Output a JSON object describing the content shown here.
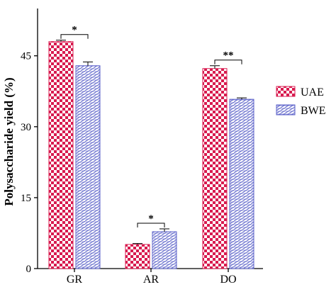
{
  "chart_data": {
    "type": "bar",
    "title": "",
    "xlabel": "",
    "ylabel": "Polysaccharide yield (%)",
    "ylim": [
      0,
      55
    ],
    "yticks": [
      "0",
      "15",
      "30",
      "45"
    ],
    "categories": [
      "GR",
      "AR",
      "DO"
    ],
    "series": [
      {
        "name": "UAE",
        "values": [
          48.0,
          5.1,
          42.3
        ],
        "errors": [
          0.3,
          0.2,
          0.6
        ],
        "color": "#d81b4f",
        "pattern": "checkerboard"
      },
      {
        "name": "BWE",
        "values": [
          42.9,
          7.8,
          35.8
        ],
        "errors": [
          0.8,
          0.6,
          0.3
        ],
        "color": "#5b61c9",
        "pattern": "hatched"
      }
    ],
    "significance": [
      "*",
      "*",
      "**"
    ],
    "legend": {
      "position": "right"
    },
    "grid": false
  },
  "colors": {
    "uae": "#d81b4f",
    "bwe": "#5b61c9",
    "axis": "#000000"
  }
}
